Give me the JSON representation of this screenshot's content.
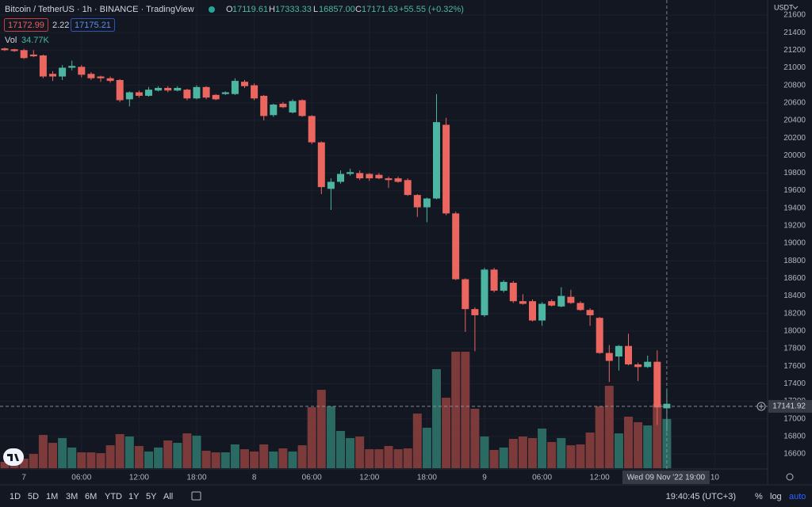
{
  "chart_data": {
    "type": "candlestick",
    "title": "Bitcoin / TetherUS · 1h · BINANCE · TradingView",
    "legend": {
      "labels": [
        "O",
        "H",
        "L",
        "C"
      ],
      "values": [
        "17119.61",
        "17333.33",
        "16857.00",
        "17171.63"
      ],
      "change": "+55.55 (+0.32%)"
    },
    "bid": "17172.99",
    "spread": "2.22",
    "ask": "17175.21",
    "volume_label": "Vol",
    "volume_value": "34.77K",
    "currency": "USDT",
    "categories": [
      null,
      null,
      "7",
      null,
      null,
      null,
      null,
      null,
      "06:00",
      null,
      null,
      null,
      null,
      null,
      "12:00",
      null,
      null,
      null,
      null,
      null,
      "18:00",
      null,
      null,
      null,
      null,
      null,
      "8",
      null,
      null,
      null,
      null,
      null,
      "06:00",
      null,
      null,
      null,
      null,
      null,
      "12:00",
      null,
      null,
      null,
      null,
      null,
      "18:00",
      null,
      null,
      null,
      null,
      null,
      "9",
      null,
      null,
      null,
      null,
      null,
      "06:00",
      null,
      null,
      null,
      null,
      null,
      "12:00",
      null,
      null,
      null,
      null,
      null,
      null,
      null,
      null,
      null,
      null,
      null,
      "10"
    ],
    "open": [
      21220,
      21210,
      21200,
      21150,
      21140,
      20930,
      20900,
      21000,
      21010,
      20930,
      20900,
      20880,
      20860,
      20640,
      20720,
      20680,
      20740,
      20770,
      20740,
      20750,
      20650,
      20780,
      20690,
      20700,
      20700,
      20840,
      20800,
      20680,
      20460,
      20590,
      20490,
      20630,
      20450,
      20150,
      19620,
      19700,
      19790,
      19800,
      19790,
      19780,
      19740,
      19740,
      19720,
      19550,
      19410,
      19510,
      20350,
      19340,
      18590,
      18250,
      18180,
      18700,
      18460,
      18550,
      18340,
      18340,
      18120,
      18340,
      18280,
      18390,
      18320,
      18240,
      18150,
      17750,
      17710,
      17830,
      17620,
      17590,
      17650,
      17119.61,
      null,
      null,
      null,
      null,
      null
    ],
    "high": [
      21230,
      21215,
      21215,
      21200,
      21150,
      20960,
      21030,
      21080,
      21030,
      20950,
      20910,
      20900,
      20870,
      20730,
      20740,
      20780,
      20790,
      20790,
      20790,
      20760,
      20800,
      20790,
      20700,
      20730,
      20880,
      20860,
      20820,
      20690,
      20590,
      20610,
      20640,
      20640,
      20460,
      20160,
      19740,
      19830,
      19850,
      19830,
      19800,
      19800,
      19760,
      19760,
      19740,
      19560,
      19520,
      20700,
      20430,
      19360,
      18600,
      18270,
      18720,
      18720,
      18580,
      18570,
      18420,
      18360,
      18330,
      18360,
      18500,
      18470,
      18340,
      18260,
      18160,
      17840,
      17840,
      17970,
      17640,
      17720,
      17780,
      17333.33,
      null,
      null,
      null,
      null,
      null
    ],
    "low": [
      21190,
      21180,
      21100,
      21120,
      20880,
      20850,
      20860,
      20970,
      20890,
      20860,
      20840,
      20830,
      20610,
      20560,
      20660,
      20670,
      20730,
      20720,
      20730,
      20630,
      20640,
      20640,
      20630,
      20690,
      20690,
      20770,
      20630,
      20400,
      20440,
      20540,
      20480,
      20440,
      20130,
      19560,
      19380,
      19680,
      19770,
      19720,
      19710,
      19730,
      19630,
      19690,
      19540,
      19300,
      19240,
      19500,
      19320,
      18580,
      17990,
      17770,
      18160,
      18440,
      18440,
      18320,
      18300,
      18110,
      18060,
      18280,
      18270,
      18310,
      18230,
      18060,
      17740,
      17420,
      17550,
      17610,
      17430,
      17580,
      16930,
      16857,
      null,
      null,
      null,
      null,
      null
    ],
    "close": [
      21200,
      21190,
      21110,
      21130,
      20900,
      20900,
      21000,
      21020,
      20920,
      20880,
      20880,
      20850,
      20630,
      20720,
      20680,
      20750,
      20770,
      20740,
      20770,
      20650,
      20780,
      20660,
      20640,
      20720,
      20850,
      20790,
      20650,
      20450,
      20580,
      20550,
      20620,
      20450,
      20150,
      19640,
      19700,
      19790,
      19810,
      19740,
      19740,
      19740,
      19720,
      19700,
      19550,
      19410,
      19510,
      20380,
      19340,
      18590,
      18250,
      18180,
      18700,
      18460,
      18560,
      18340,
      18310,
      18120,
      18310,
      18290,
      18400,
      18320,
      18240,
      18180,
      17750,
      17660,
      17830,
      17620,
      17590,
      17650,
      17130,
      17171.63,
      null,
      null,
      null,
      null,
      null
    ],
    "volume": [
      4500,
      4500,
      6700,
      10100,
      23500,
      17900,
      21300,
      14600,
      11200,
      11200,
      10600,
      16200,
      24100,
      22400,
      15700,
      11800,
      14600,
      19600,
      17900,
      24600,
      23000,
      12300,
      11200,
      11200,
      16800,
      13400,
      11800,
      16800,
      11800,
      14000,
      11800,
      16200,
      43100,
      55400,
      43700,
      26300,
      21300,
      22400,
      13400,
      13400,
      15700,
      13400,
      14000,
      38600,
      28600,
      70000,
      49800,
      82300,
      82300,
      42000,
      22400,
      12900,
      14600,
      20700,
      22400,
      21300,
      28000,
      18500,
      21300,
      16200,
      16800,
      25200,
      43700,
      58200,
      24600,
      36400,
      32500,
      30200,
      45400,
      34770,
      null,
      null,
      null,
      null,
      null
    ],
    "up_color": "#4db6a2",
    "down_color": "#ea665f",
    "volume_up_color": "#2b6a62",
    "volume_down_color": "#7d3a3a",
    "ylim": [
      16600,
      21600
    ],
    "yticks": [
      16600,
      16800,
      17000,
      17200,
      17400,
      17600,
      17800,
      18000,
      18200,
      18400,
      18600,
      18800,
      19000,
      19200,
      19400,
      19600,
      19800,
      20000,
      20200,
      20400,
      20600,
      20800,
      21000,
      21200,
      21400,
      21600
    ],
    "grid": true,
    "crosshair": {
      "price": 17141.92,
      "time_label": "Wed 09 Nov '22 19:00"
    },
    "toolbar": {
      "ranges": [
        "1D",
        "5D",
        "1M",
        "3M",
        "6M",
        "YTD",
        "1Y",
        "5Y",
        "All"
      ],
      "clock": "19:40:45 (UTC+3)",
      "percent": "%",
      "log": "log",
      "auto": "auto"
    }
  }
}
